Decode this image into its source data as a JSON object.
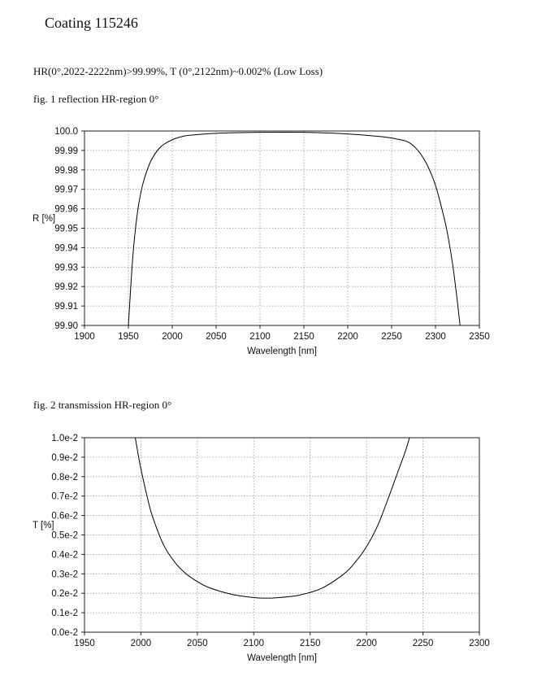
{
  "header": {
    "title": "Coating  115246",
    "spec": "HR(0°,2022-2222nm)>99.99%,  T (0°,2122nm)~0.002%  (Low Loss)"
  },
  "chart_data": [
    {
      "type": "line",
      "caption": "fig. 1 reflection HR-region  0°",
      "xlabel": "Wavelength [nm]",
      "ylabel": "R [%]",
      "xlim": [
        1900,
        2350
      ],
      "ylim": [
        99.9,
        100.0
      ],
      "x_ticks": [
        1900,
        1950,
        2000,
        2050,
        2100,
        2150,
        2200,
        2250,
        2300,
        2350
      ],
      "y_ticks": [
        99.9,
        99.91,
        99.92,
        99.93,
        99.94,
        99.95,
        99.96,
        99.97,
        99.98,
        99.99,
        100.0
      ],
      "y_tick_labels": [
        "99.90",
        "99.91",
        "99.92",
        "99.93",
        "99.94",
        "99.95",
        "99.96",
        "99.97",
        "99.98",
        "99.99",
        "100.0"
      ],
      "grid": true,
      "series": [
        {
          "color": "#000000",
          "x": [
            1950,
            1955,
            1960,
            1965,
            1970,
            1975,
            1980,
            1985,
            1990,
            2000,
            2010,
            2020,
            2050,
            2100,
            2150,
            2200,
            2240,
            2260,
            2270,
            2280,
            2290,
            2300,
            2310,
            2315,
            2320,
            2325,
            2328
          ],
          "y": [
            99.9,
            99.935,
            99.957,
            99.97,
            99.978,
            99.984,
            99.988,
            99.991,
            99.993,
            99.9955,
            99.997,
            99.9978,
            99.9988,
            99.9993,
            99.9993,
            99.9985,
            99.997,
            99.9955,
            99.994,
            99.99,
            99.983,
            99.972,
            99.955,
            99.944,
            99.93,
            99.912,
            99.9
          ]
        }
      ]
    },
    {
      "type": "line",
      "caption": "fig. 2 transmission HR-region  0°",
      "xlabel": "Wavelength [nm]",
      "ylabel": "T [%]",
      "xlim": [
        1950,
        2300
      ],
      "ylim": [
        0.0,
        0.01
      ],
      "x_ticks": [
        1950,
        2000,
        2050,
        2100,
        2150,
        2200,
        2250,
        2300
      ],
      "y_ticks": [
        0.0,
        0.001,
        0.002,
        0.003,
        0.004,
        0.005,
        0.006,
        0.007,
        0.008,
        0.009,
        0.01
      ],
      "y_tick_labels": [
        "0.0e-2",
        "0.1e-2",
        "0.2e-2",
        "0.3e-2",
        "0.4e-2",
        "0.5e-2",
        "0.6e-2",
        "0.7e-2",
        "0.8e-2",
        "0.9e-2",
        "1.0e-2"
      ],
      "grid": true,
      "series": [
        {
          "color": "#000000",
          "x": [
            1995,
            1998,
            2000,
            2005,
            2010,
            2020,
            2030,
            2040,
            2050,
            2060,
            2080,
            2100,
            2110,
            2120,
            2140,
            2160,
            2180,
            2190,
            2200,
            2210,
            2220,
            2225,
            2230,
            2235,
            2238
          ],
          "y": [
            0.01,
            0.009,
            0.0084,
            0.0071,
            0.006,
            0.0045,
            0.0036,
            0.003,
            0.0026,
            0.0023,
            0.00195,
            0.00178,
            0.00175,
            0.00177,
            0.0019,
            0.00225,
            0.003,
            0.0036,
            0.0044,
            0.0055,
            0.007,
            0.0078,
            0.0086,
            0.0094,
            0.01
          ]
        }
      ]
    }
  ]
}
